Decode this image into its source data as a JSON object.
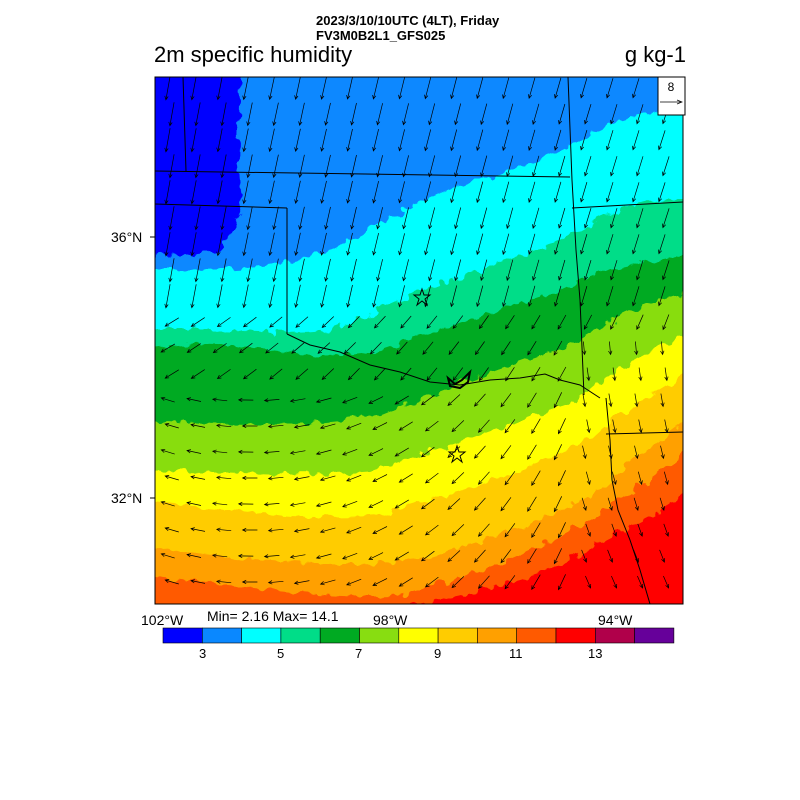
{
  "header": {
    "datetime": "2023/3/10/10UTC (4LT), Friday",
    "model": "FV3M0B2L1_GFS025"
  },
  "plot": {
    "title": "2m specific humidity",
    "units": "g kg-1",
    "vector_ref": "8"
  },
  "axes": {
    "lat_labels": [
      "36°N",
      "32°N"
    ],
    "lon_labels": [
      "102°W",
      "98°W",
      "94°W"
    ]
  },
  "stats": {
    "text": "Min= 2.16 Max= 14.1"
  },
  "colorbar": {
    "colors": [
      "#0000ff",
      "#0a88ff",
      "#00ffff",
      "#00dd88",
      "#00aa22",
      "#88dd11",
      "#ffff00",
      "#ffcc00",
      "#ffa000",
      "#ff5a00",
      "#ff0000",
      "#b0004a",
      "#66009a"
    ],
    "labels": [
      "3",
      "5",
      "7",
      "9",
      "11",
      "13"
    ]
  }
}
